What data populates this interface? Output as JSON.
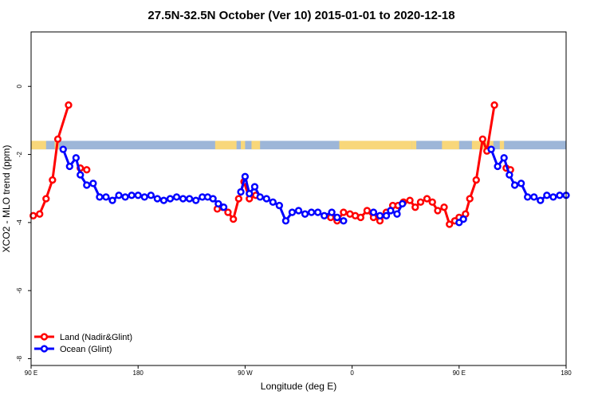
{
  "chart_data": {
    "type": "line",
    "title": "27.5N-32.5N October (Ver 10)   2015-01-01 to 2020-12-18",
    "xlabel": "Longitude (deg E)",
    "ylabel": "XCO2 - MLO trend (ppm)",
    "xlim": [
      90,
      340
    ],
    "ylim": [
      -8.2,
      1.6
    ],
    "x_ticks": [
      {
        "value": 90,
        "label": "90 E"
      },
      {
        "value": 140,
        "label": "180"
      },
      {
        "value": 190,
        "label": "90 W"
      },
      {
        "value": 240,
        "label": "0"
      },
      {
        "value": 290,
        "label": "90 E"
      },
      {
        "value": 340,
        "label": "180"
      }
    ],
    "y_ticks": [
      {
        "value": 0,
        "label": "0"
      },
      {
        "value": -2,
        "label": "-2"
      },
      {
        "value": -4,
        "label": "-4"
      },
      {
        "value": -6,
        "label": "-6"
      },
      {
        "value": -8,
        "label": "-8"
      }
    ],
    "grid": false,
    "legend_position": "bottom-left",
    "land_ocean_band": {
      "y_range": [
        -1.6,
        -1.85
      ],
      "ocean_color": "#9db6d8",
      "land_color": "#f8d77a",
      "land_segments": [
        [
          90,
          97
        ],
        [
          101,
          103
        ],
        [
          176,
          186
        ],
        [
          188,
          190
        ],
        [
          193,
          197
        ],
        [
          234,
          268
        ],
        [
          268,
          269
        ],
        [
          269,
          270
        ],
        [
          282,
          290
        ],
        [
          296,
          306
        ],
        [
          309,
          311
        ]
      ]
    },
    "series": [
      {
        "name": "Land (Nadir&Glint)",
        "color": "#ff0000",
        "segments": [
          {
            "x": [
              91,
              94,
              97,
              100,
              102.5,
              107.5
            ],
            "y": [
              -3.8,
              -3.75,
              -3.3,
              -2.75,
              -1.55,
              -0.55
            ]
          },
          {
            "x": [
              113,
              116
            ],
            "y": [
              -2.4,
              -2.45
            ]
          },
          {
            "x": [
              177,
              179.5,
              182,
              184.5,
              187,
              189.5,
              192,
              195
            ],
            "y": [
              -3.6,
              -3.55,
              -3.7,
              -3.9,
              -3.3,
              -2.8,
              -3.3,
              -3.2
            ]
          },
          {
            "x": [
              230,
              233,
              236,
              239,
              241.5,
              244,
              247,
              250,
              253,
              256,
              259,
              261.5,
              264,
              267,
              269.5,
              272,
              275,
              277.5,
              280,
              283,
              285.5,
              288,
              290,
              293,
              295,
              298,
              301,
              303,
              306.5
            ],
            "y": [
              -3.85,
              -3.95,
              -3.7,
              -3.75,
              -3.8,
              -3.85,
              -3.65,
              -3.85,
              -3.95,
              -3.7,
              -3.5,
              -3.5,
              -3.4,
              -3.35,
              -3.55,
              -3.4,
              -3.3,
              -3.4,
              -3.65,
              -3.55,
              -4.05,
              -3.95,
              -3.85,
              -3.75,
              -3.3,
              -2.75,
              -1.55,
              -1.9,
              -0.55
            ]
          },
          {
            "x": [
              312,
              314
            ],
            "y": [
              -2.4,
              -2.45
            ]
          }
        ]
      },
      {
        "name": "Ocean (Glint)",
        "color": "#0000ff",
        "segments": [
          {
            "x": [
              105,
              108,
              111,
              113,
              116,
              119,
              122,
              125,
              128,
              131,
              134,
              137,
              140,
              143,
              146,
              149,
              152,
              155,
              158,
              161,
              164,
              167,
              170,
              172.5,
              175,
              177.5,
              180
            ],
            "y": [
              -1.85,
              -2.35,
              -2.1,
              -2.6,
              -2.9,
              -2.85,
              -3.25,
              -3.25,
              -3.35,
              -3.2,
              -3.25,
              -3.2,
              -3.2,
              -3.25,
              -3.2,
              -3.3,
              -3.35,
              -3.3,
              -3.25,
              -3.3,
              -3.3,
              -3.35,
              -3.25,
              -3.25,
              -3.3,
              -3.45,
              -3.55
            ]
          },
          {
            "x": [
              188,
              190,
              192,
              194.5,
              197,
              200,
              203,
              206,
              209,
              212,
              215,
              218,
              221,
              224,
              227,
              230.5,
              233,
              236
            ],
            "y": [
              -3.1,
              -2.65,
              -3.15,
              -2.95,
              -3.25,
              -3.3,
              -3.4,
              -3.5,
              -3.95,
              -3.7,
              -3.65,
              -3.75,
              -3.7,
              -3.7,
              -3.8,
              -3.7,
              -3.85,
              -3.95
            ]
          },
          {
            "x": [
              250,
              253,
              256,
              258,
              261,
              263.5
            ],
            "y": [
              -3.7,
              -3.8,
              -3.8,
              -3.65,
              -3.75,
              -3.45
            ]
          },
          {
            "x": [
              290,
              292
            ],
            "y": [
              -4.0,
              -3.9
            ]
          },
          {
            "x": [
              305,
              308,
              311,
              313.5,
              316,
              319,
              322,
              325,
              328,
              331,
              334,
              337,
              340
            ],
            "y": [
              -1.85,
              -2.35,
              -2.1,
              -2.6,
              -2.9,
              -2.85,
              -3.25,
              -3.25,
              -3.35,
              -3.2,
              -3.25,
              -3.2,
              -3.2
            ]
          }
        ]
      }
    ]
  }
}
